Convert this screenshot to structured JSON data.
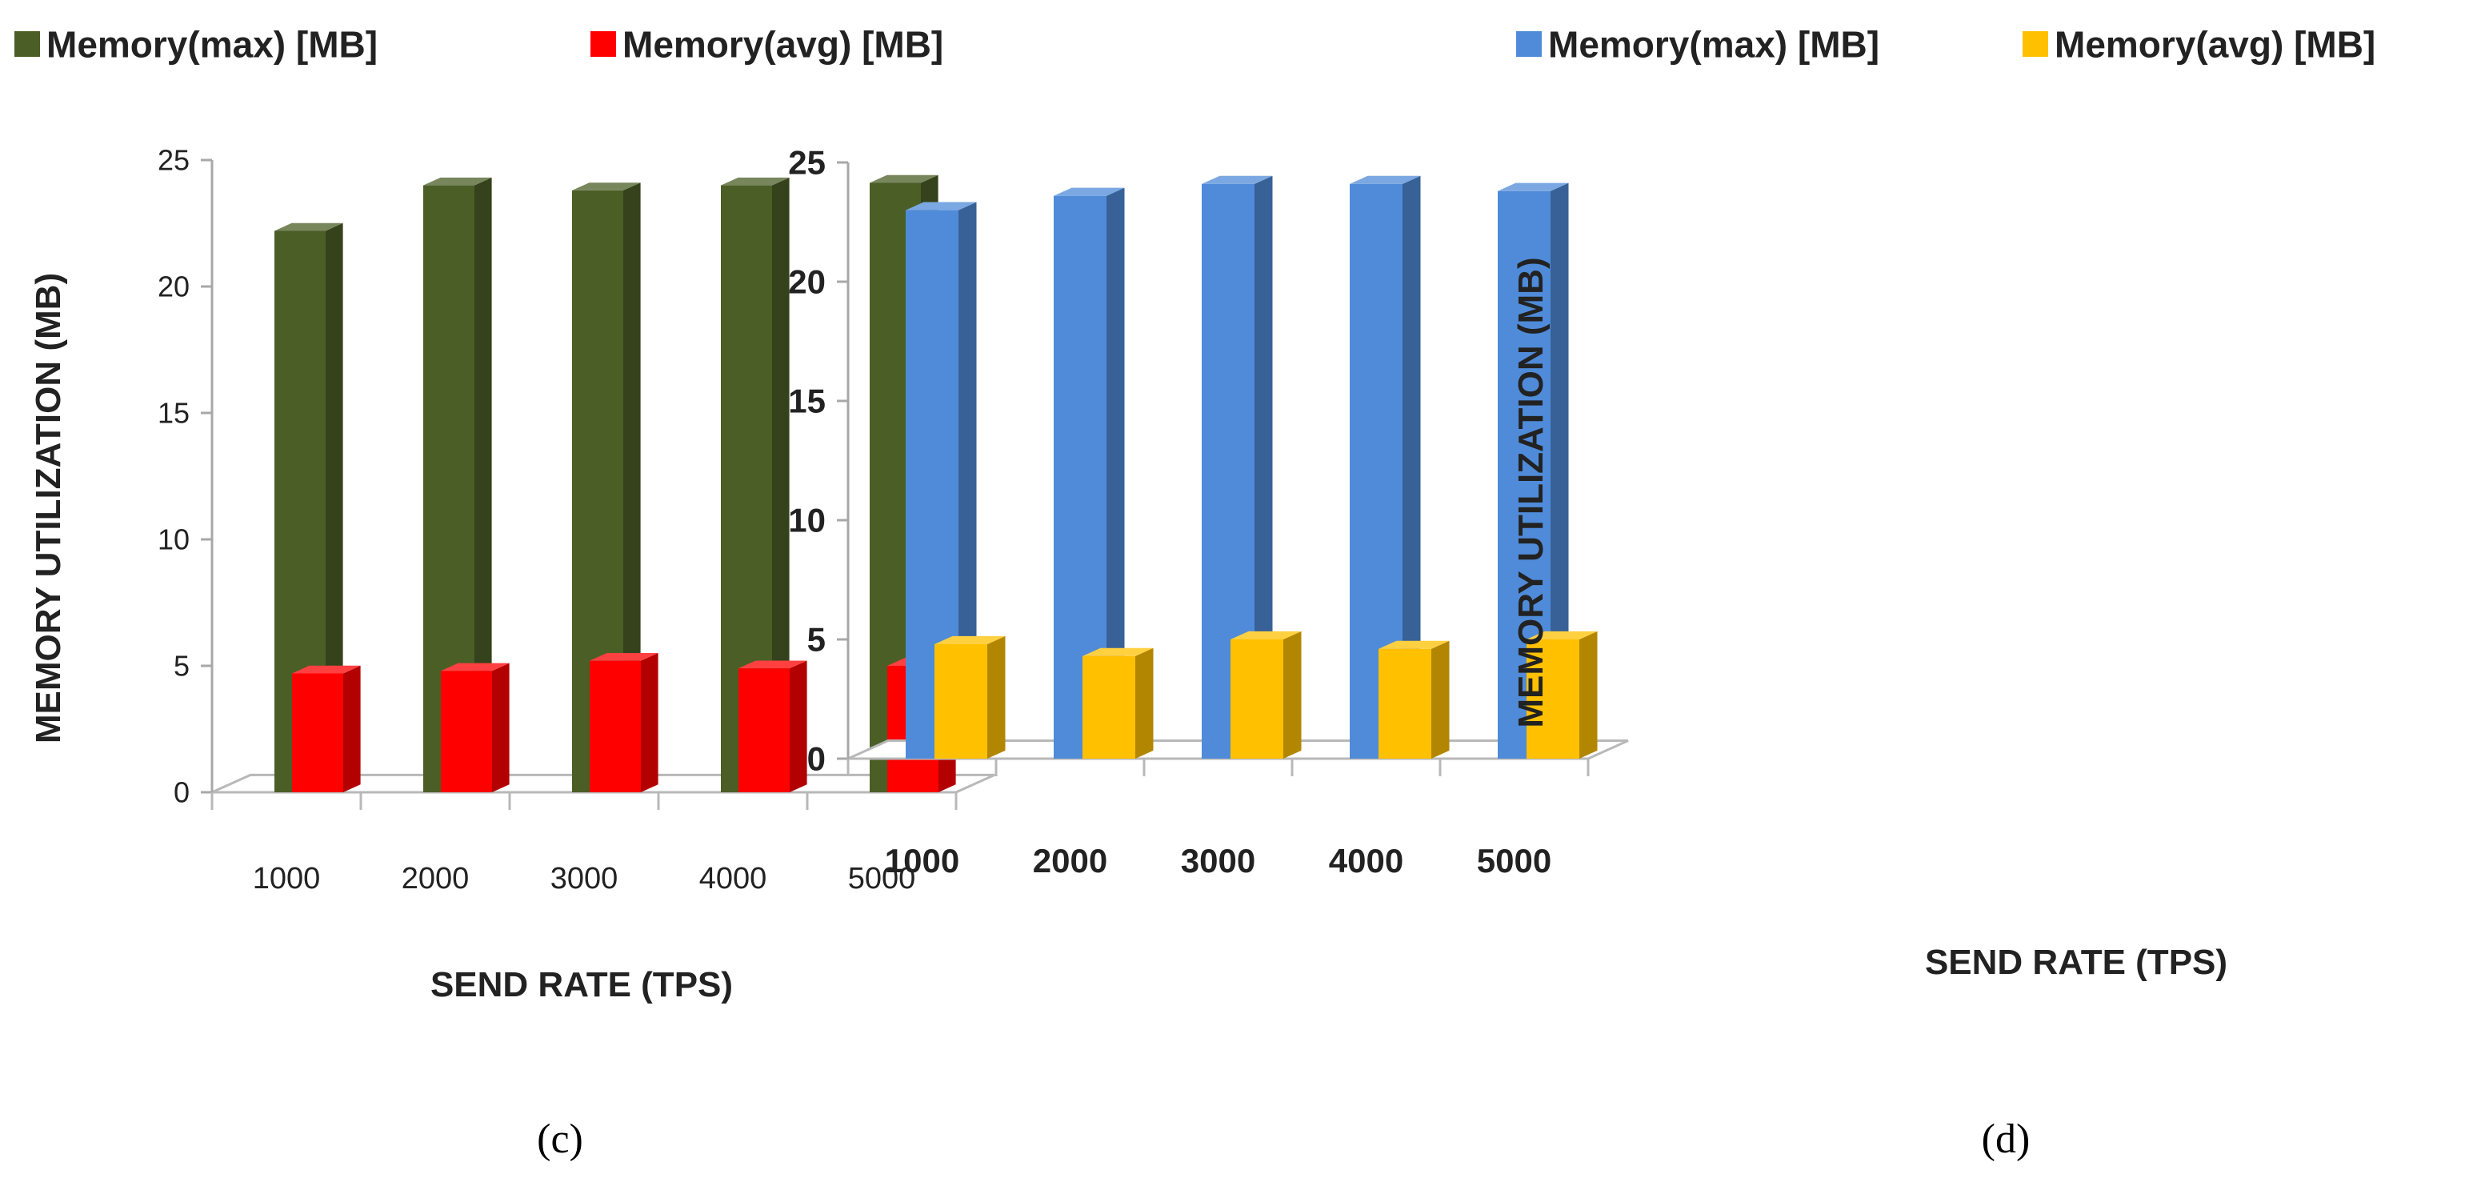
{
  "chart_data": [
    {
      "type": "bar",
      "panel_label": "(c)",
      "categories": [
        "1000",
        "2000",
        "3000",
        "4000",
        "5000"
      ],
      "series": [
        {
          "name": "Memory(max)  [MB]",
          "values": [
            22.2,
            24.0,
            23.8,
            24.0,
            24.1
          ]
        },
        {
          "name": "Memory(avg)  [MB]",
          "values": [
            4.7,
            4.8,
            5.2,
            4.9,
            5.0
          ]
        }
      ],
      "colors": [
        "#4b5e26",
        "#ff0000"
      ],
      "xlabel": "SEND RATE (TPS)",
      "ylabel": "MEMORY UTILIZATION (MB)",
      "ylim": [
        0,
        25
      ],
      "yticks": [
        0,
        5,
        10,
        15,
        20,
        25
      ],
      "legend_position": "top",
      "grid": false
    },
    {
      "type": "bar",
      "panel_label": "(d)",
      "categories": [
        "1000",
        "2000",
        "3000",
        "4000",
        "5000"
      ],
      "series": [
        {
          "name": "Memory(max)  [MB]",
          "values": [
            23.0,
            23.6,
            24.1,
            24.1,
            23.8
          ]
        },
        {
          "name": "Memory(avg)  [MB]",
          "values": [
            4.8,
            4.3,
            5.0,
            4.6,
            5.0
          ]
        }
      ],
      "colors": [
        "#4f8bd8",
        "#ffc000"
      ],
      "xlabel": "SEND RATE (TPS)",
      "ylabel": "MEMORY UTILIZATION  (MB)",
      "ylim": [
        0,
        25
      ],
      "yticks": [
        0,
        5,
        10,
        15,
        20,
        25
      ],
      "legend_position": "top",
      "grid": false
    }
  ]
}
